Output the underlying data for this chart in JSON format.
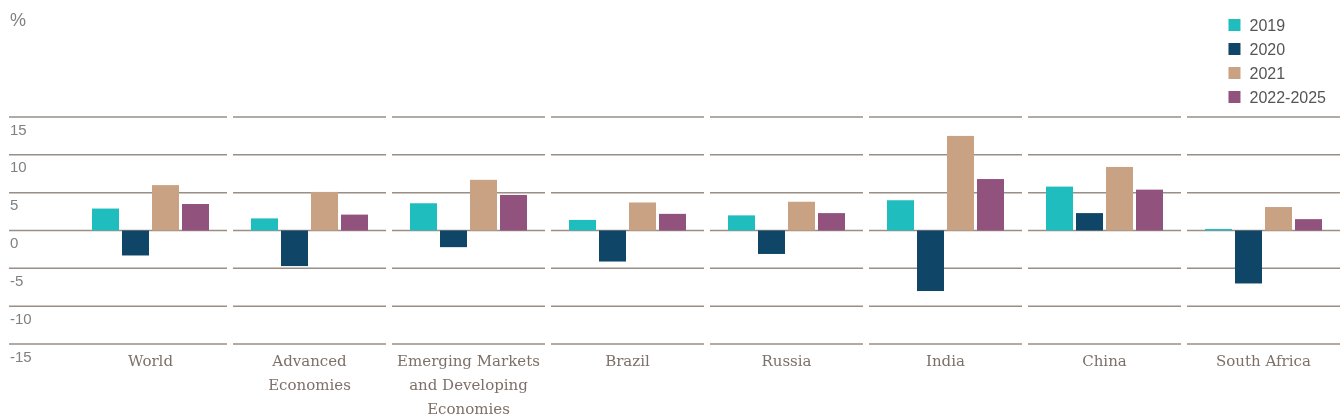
{
  "chart_data": {
    "type": "bar",
    "ylabel": "%",
    "categories": [
      "World",
      "Advanced Economies",
      "Emerging Markets and Developing Economies",
      "Brazil",
      "Russia",
      "India",
      "China",
      "South Africa"
    ],
    "series": [
      {
        "name": "2019",
        "color": "#20bdbe",
        "values": [
          2.9,
          1.6,
          3.6,
          1.4,
          2.0,
          4.0,
          5.8,
          0.2
        ]
      },
      {
        "name": "2020",
        "color": "#0f4668",
        "values": [
          -3.3,
          -4.7,
          -2.2,
          -4.1,
          -3.1,
          -8.0,
          2.3,
          -7.0
        ]
      },
      {
        "name": "2021",
        "color": "#c9a183",
        "values": [
          6.0,
          5.1,
          6.7,
          3.7,
          3.8,
          12.5,
          8.4,
          3.1
        ]
      },
      {
        "name": "2022-2025",
        "color": "#92527e",
        "values": [
          3.5,
          2.1,
          4.7,
          2.2,
          2.3,
          6.8,
          5.4,
          1.5
        ]
      }
    ],
    "ylim": [
      -15,
      15
    ],
    "yticks": [
      -15,
      -10,
      -5,
      0,
      5,
      10,
      15
    ],
    "grid": "y",
    "legend": "top right"
  }
}
